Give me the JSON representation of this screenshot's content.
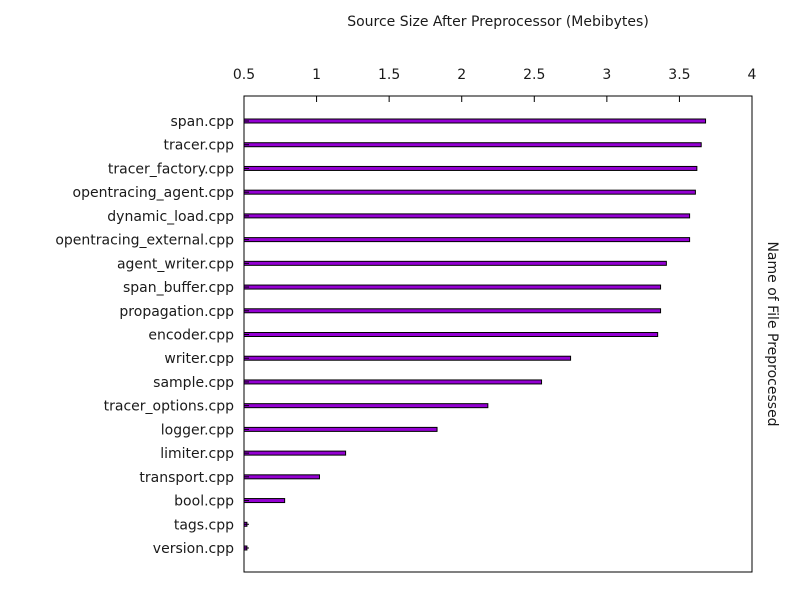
{
  "chart_data": {
    "type": "bar",
    "orientation": "horizontal",
    "title": "Source Size After Preprocessor (Mebibytes)",
    "xlabel": "Source Size After Preprocessor (Mebibytes)",
    "ylabel": "Name of File Preprocessed",
    "xlim": [
      0.5,
      4
    ],
    "xticks": [
      "0.5",
      "1",
      "1.5",
      "2",
      "2.5",
      "3",
      "3.5",
      "4"
    ],
    "x_axis_position": "top",
    "ylabel_position": "right",
    "grid": false,
    "bar_color": "#9400d3",
    "bar_edge_color": "#000000",
    "categories": [
      "span.cpp",
      "tracer.cpp",
      "tracer_factory.cpp",
      "opentracing_agent.cpp",
      "dynamic_load.cpp",
      "opentracing_external.cpp",
      "agent_writer.cpp",
      "span_buffer.cpp",
      "propagation.cpp",
      "encoder.cpp",
      "writer.cpp",
      "sample.cpp",
      "tracer_options.cpp",
      "logger.cpp",
      "limiter.cpp",
      "transport.cpp",
      "bool.cpp",
      "tags.cpp",
      "version.cpp"
    ],
    "values": [
      3.68,
      3.65,
      3.62,
      3.61,
      3.57,
      3.57,
      3.41,
      3.37,
      3.37,
      3.35,
      2.75,
      2.55,
      2.18,
      1.83,
      1.2,
      1.02,
      0.78,
      0.52,
      0.52
    ]
  }
}
